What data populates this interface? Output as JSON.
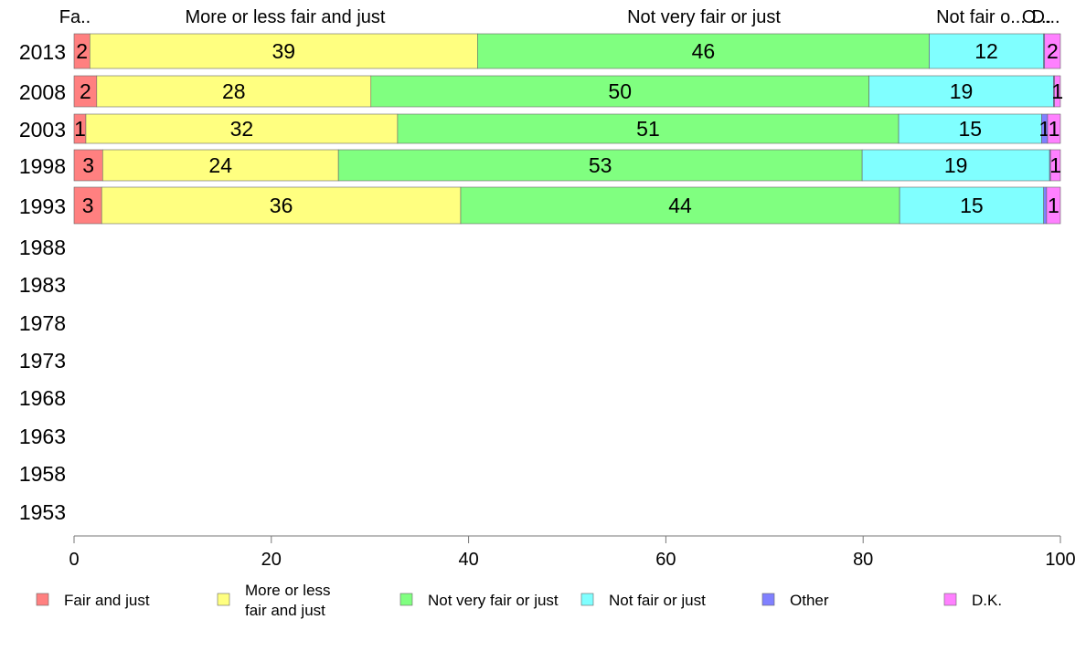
{
  "chart_data": {
    "type": "bar",
    "orientation": "horizontal",
    "stacked": true,
    "categories": [
      "2013",
      "2008",
      "2003",
      "1998",
      "1993",
      "1988",
      "1983",
      "1978",
      "1973",
      "1968",
      "1963",
      "1958",
      "1953"
    ],
    "xlim": [
      0,
      100
    ],
    "xticks": [
      "0",
      "20",
      "40",
      "60",
      "80",
      "100"
    ],
    "grid": false,
    "legend_position": "bottom",
    "top_labels": [
      "Fa..",
      "More or less fair and just",
      "Not very fair or just",
      "Not fair o...",
      "O...",
      "D..."
    ],
    "series": [
      {
        "name": "Fair and just",
        "legend_label": [
          "Fair and just"
        ],
        "color": "#FF8080",
        "values": [
          1.6,
          2.3,
          1.2,
          2.9,
          2.8,
          null,
          null,
          null,
          null,
          null,
          null,
          null,
          null
        ],
        "labels": [
          "2",
          "2",
          "1",
          "3",
          "3",
          "",
          "",
          "",
          "",
          "",
          "",
          "",
          ""
        ]
      },
      {
        "name": "More or less fair and just",
        "legend_label": [
          "More or less",
          "fair and just"
        ],
        "color": "#FFFF80",
        "values": [
          39.3,
          27.8,
          31.6,
          23.9,
          36.4,
          null,
          null,
          null,
          null,
          null,
          null,
          null,
          null
        ],
        "labels": [
          "39",
          "28",
          "32",
          "24",
          "36",
          "",
          "",
          "",
          "",
          "",
          "",
          "",
          ""
        ]
      },
      {
        "name": "Not very fair or just",
        "legend_label": [
          "Not very fair or just"
        ],
        "color": "#80FF80",
        "values": [
          45.8,
          50.5,
          50.8,
          53.1,
          44.5,
          null,
          null,
          null,
          null,
          null,
          null,
          null,
          null
        ],
        "labels": [
          "46",
          "50",
          "51",
          "53",
          "44",
          "",
          "",
          "",
          "",
          "",
          "",
          "",
          ""
        ]
      },
      {
        "name": "Not fair or just",
        "legend_label": [
          "Not fair or just"
        ],
        "color": "#80FFFF",
        "values": [
          11.6,
          18.7,
          14.5,
          19.0,
          14.6,
          null,
          null,
          null,
          null,
          null,
          null,
          null,
          null
        ],
        "labels": [
          "12",
          "19",
          "15",
          "19",
          "15",
          "",
          "",
          "",
          "",
          "",
          "",
          "",
          ""
        ]
      },
      {
        "name": "Other",
        "legend_label": [
          "Other"
        ],
        "color": "#8080FF",
        "values": [
          0.1,
          0.1,
          0.6,
          0.1,
          0.3,
          null,
          null,
          null,
          null,
          null,
          null,
          null,
          null
        ],
        "labels": [
          "",
          "",
          "1",
          "",
          "",
          "",
          "",
          "",
          "",
          "",
          "",
          "",
          ""
        ]
      },
      {
        "name": "D.K.",
        "legend_label": [
          "D.K."
        ],
        "color": "#FF80FF",
        "values": [
          1.6,
          0.6,
          1.3,
          1.0,
          1.4,
          null,
          null,
          null,
          null,
          null,
          null,
          null,
          null
        ],
        "labels": [
          "2",
          "1",
          "1",
          "1",
          "1",
          "",
          "",
          "",
          "",
          "",
          "",
          "",
          ""
        ]
      }
    ]
  }
}
